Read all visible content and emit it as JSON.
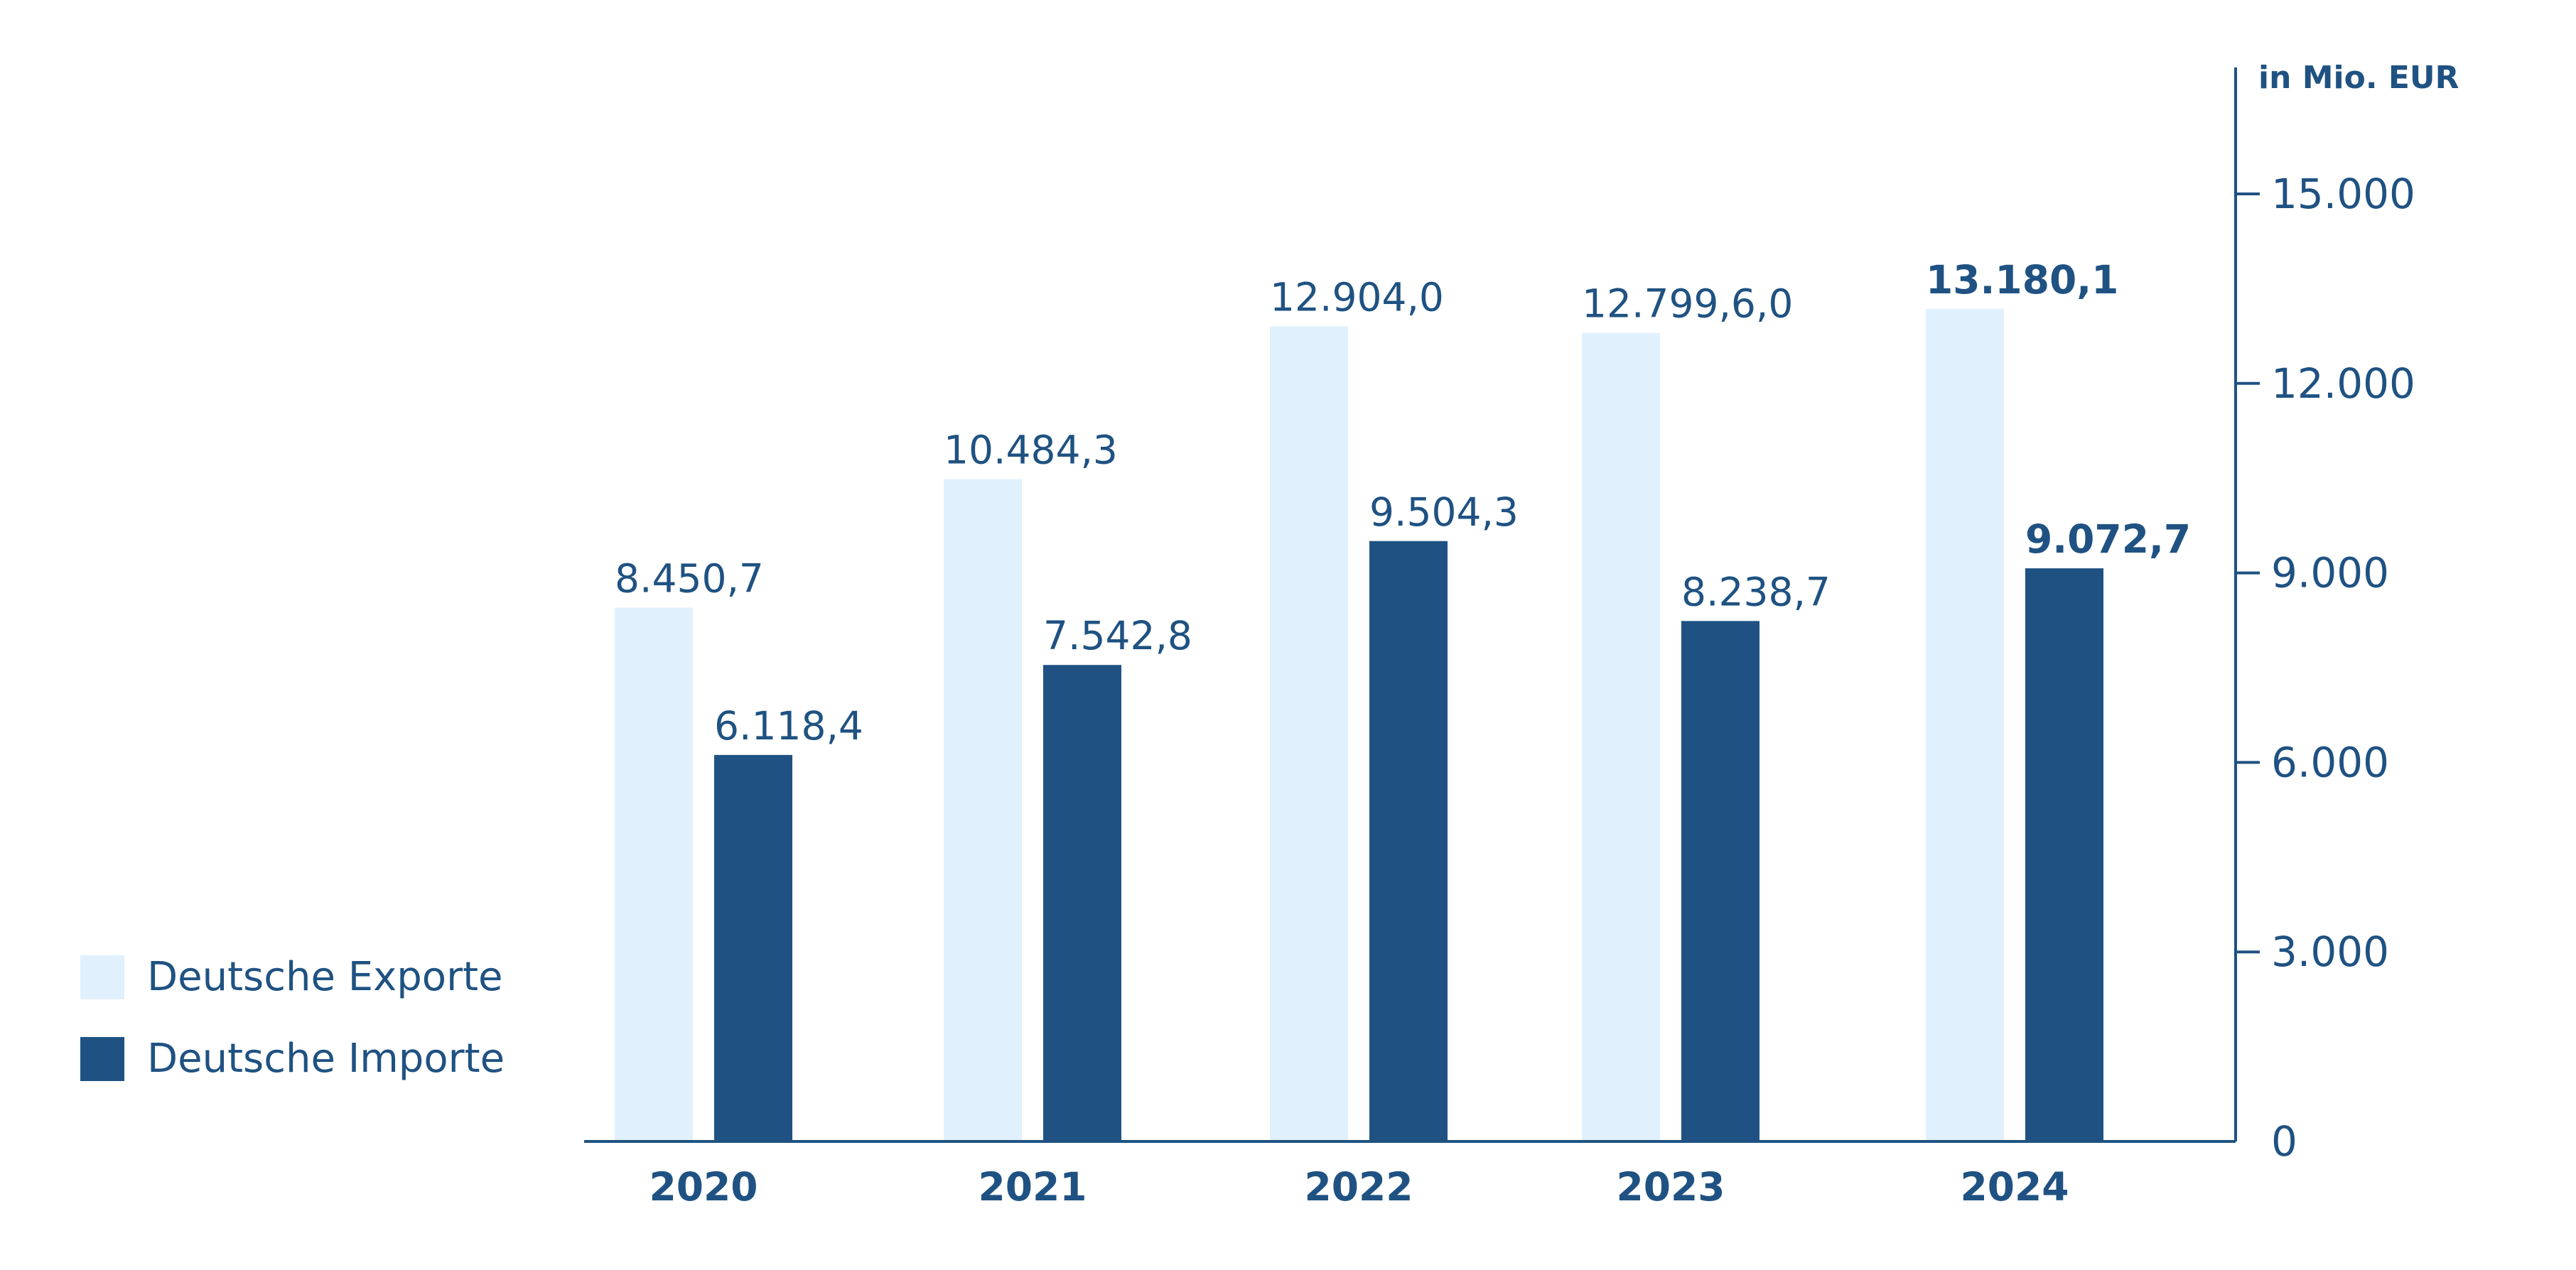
{
  "chart_data": {
    "type": "bar",
    "categories": [
      "2020",
      "2021",
      "2022",
      "2023",
      "2024"
    ],
    "series": [
      {
        "name": "Deutsche Exporte",
        "color": "#e1f0fd",
        "values": [
          8450.7,
          10484.3,
          12904.0,
          12799.6,
          13180.1
        ],
        "labels": [
          "8.450,7",
          "10.484,3",
          "12.904,0",
          "12.799,6,0",
          "13.180,1"
        ]
      },
      {
        "name": "Deutsche Importe",
        "color": "#1f5282",
        "values": [
          6118.4,
          7542.8,
          9504.3,
          8238.7,
          9072.7
        ],
        "labels": [
          "6.118,4",
          "7.542,8",
          "9.504,3",
          "8.238,7",
          "9.072,7"
        ]
      }
    ],
    "bold_category": "2024",
    "ylabel": "in Mio. EUR",
    "ylim": [
      0,
      15000
    ],
    "yticks": [
      0,
      3000,
      6000,
      9000,
      12000,
      15000
    ],
    "ytick_labels": [
      "0",
      "3.000",
      "6.000",
      "9.000",
      "12.000",
      "15.000"
    ],
    "y_axis_side": "right",
    "grid": false,
    "legend_position": "bottom-left",
    "text_color": "#1f5282",
    "axis_color": "#1f5282"
  }
}
